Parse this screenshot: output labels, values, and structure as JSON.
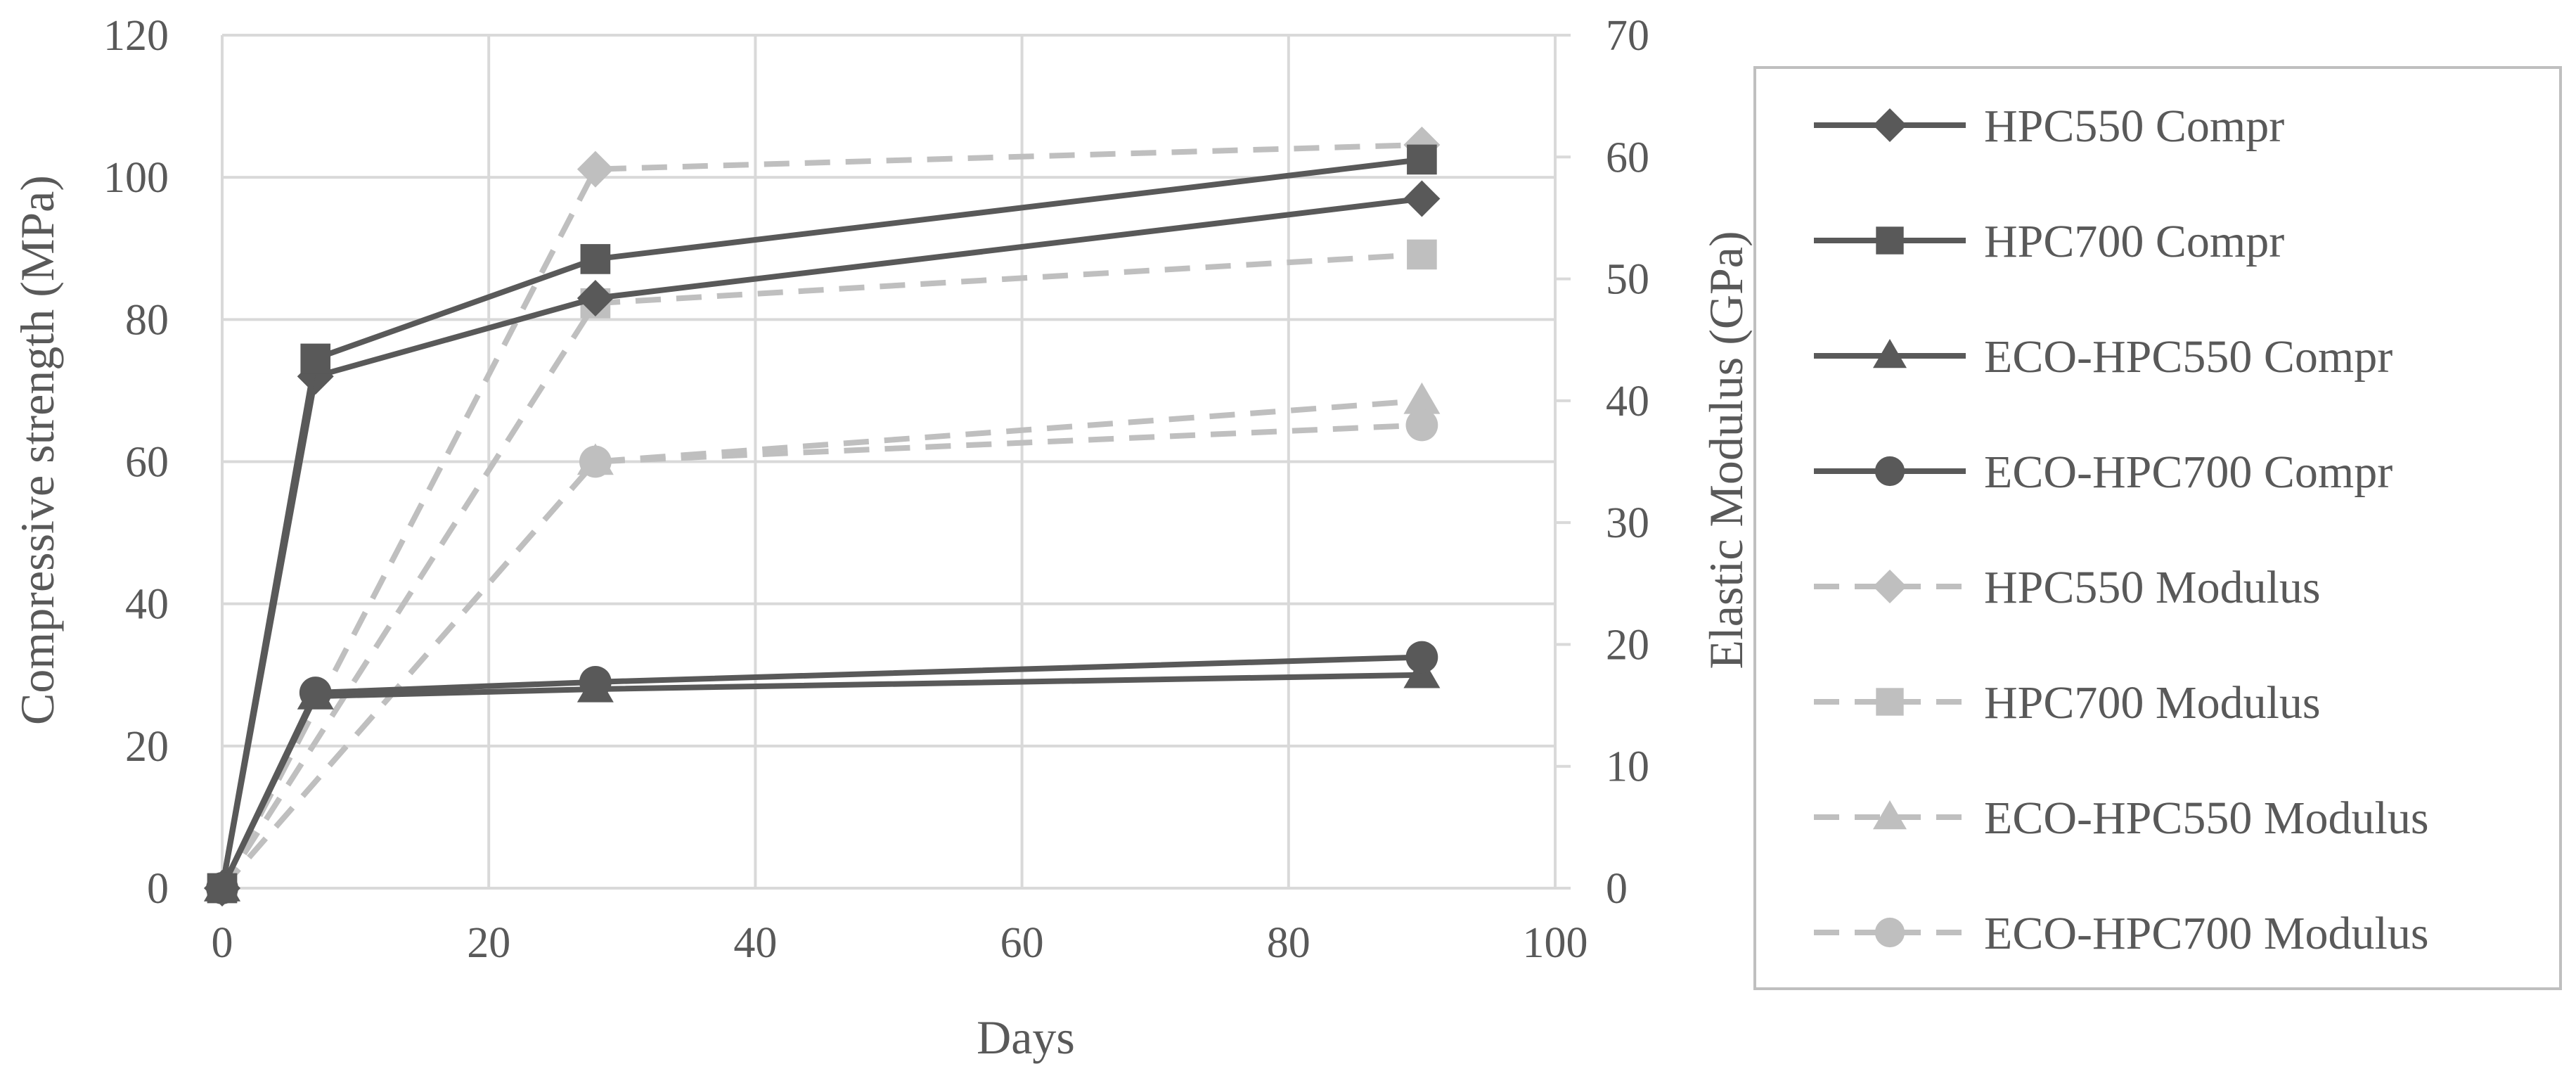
{
  "chart_data": {
    "type": "line",
    "title": "",
    "xlabel": "Days",
    "ylabel": "Compressive strength (MPa)",
    "y2label": "Elastic Modulus (GPa)",
    "xlim": [
      0,
      100
    ],
    "ylim": [
      0,
      120
    ],
    "y2lim": [
      0,
      70
    ],
    "xticks": [
      0,
      20,
      40,
      60,
      80,
      100
    ],
    "yticks": [
      0,
      20,
      40,
      60,
      80,
      100,
      120
    ],
    "y2ticks": [
      0,
      10,
      20,
      30,
      40,
      50,
      60,
      70
    ],
    "grid": true,
    "legend_position": "right",
    "colors": {
      "compr": "#595959",
      "modulus": "#bfbfbf",
      "grid": "#d9d9d9",
      "text": "#595959"
    },
    "series": [
      {
        "name": "HPC550 Compr",
        "axis": "left",
        "style": "solid",
        "marker": "diamond",
        "x": [
          0,
          7,
          28,
          90
        ],
        "values": [
          0,
          72,
          83,
          97
        ]
      },
      {
        "name": "HPC700 Compr",
        "axis": "left",
        "style": "solid",
        "marker": "square",
        "x": [
          0,
          7,
          28,
          90
        ],
        "values": [
          0,
          74.5,
          88.5,
          102.5
        ]
      },
      {
        "name": "ECO-HPC550 Compr",
        "axis": "left",
        "style": "solid",
        "marker": "triangle",
        "x": [
          0,
          7,
          28,
          90
        ],
        "values": [
          0,
          27,
          28,
          30
        ]
      },
      {
        "name": "ECO-HPC700 Compr",
        "axis": "left",
        "style": "solid",
        "marker": "circle",
        "x": [
          0,
          7,
          28,
          90
        ],
        "values": [
          0,
          27.5,
          29,
          32.5
        ]
      },
      {
        "name": "HPC550 Modulus",
        "axis": "right",
        "style": "dashed",
        "marker": "diamond",
        "x": [
          0,
          28,
          90
        ],
        "values": [
          0,
          59,
          61
        ]
      },
      {
        "name": "HPC700 Modulus",
        "axis": "right",
        "style": "dashed",
        "marker": "square",
        "x": [
          0,
          28,
          90
        ],
        "values": [
          0,
          48,
          52
        ]
      },
      {
        "name": "ECO-HPC550 Modulus",
        "axis": "right",
        "style": "dashed",
        "marker": "triangle",
        "x": [
          0,
          28,
          90
        ],
        "values": [
          0,
          35,
          40
        ]
      },
      {
        "name": "ECO-HPC700 Modulus",
        "axis": "right",
        "style": "dashed",
        "marker": "circle",
        "x": [
          0,
          28,
          90
        ],
        "values": [
          0,
          35,
          38
        ]
      }
    ]
  }
}
